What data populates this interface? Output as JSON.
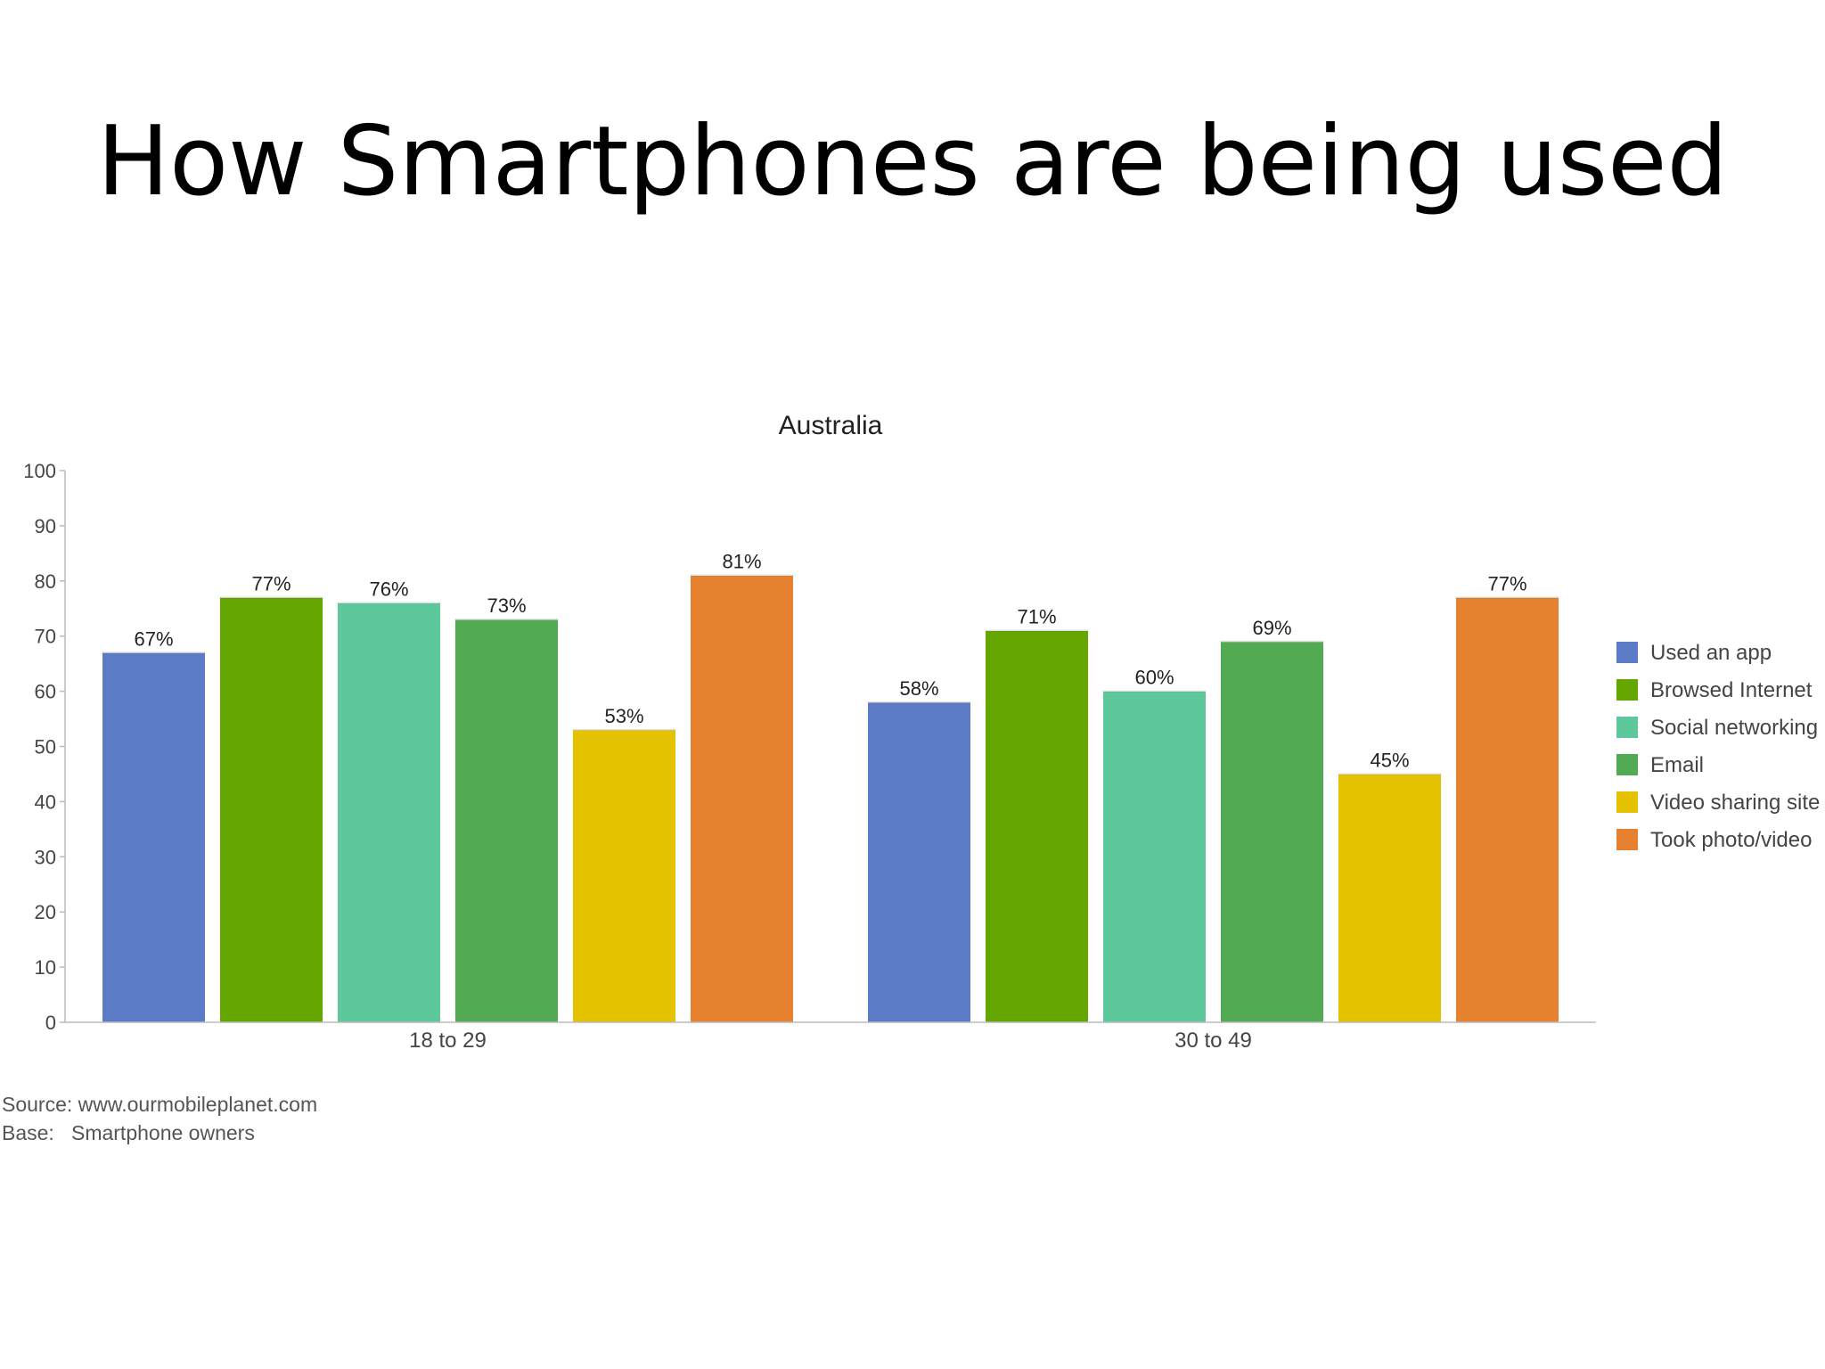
{
  "slide": {
    "title": "How Smartphones are being used"
  },
  "chart_data": {
    "type": "bar",
    "title": "Australia",
    "categories": [
      "18 to 29",
      "30 to 49"
    ],
    "series": [
      {
        "name": "Used an app",
        "color": "#5b7bc6",
        "values": [
          67,
          58
        ],
        "labels": [
          "67%",
          "58%"
        ]
      },
      {
        "name": "Browsed Internet",
        "color": "#66a600",
        "values": [
          77,
          71
        ],
        "labels": [
          "77%",
          "71%"
        ]
      },
      {
        "name": "Social networking",
        "color": "#5cc89c",
        "values": [
          76,
          60
        ],
        "labels": [
          "76%",
          "60%"
        ]
      },
      {
        "name": "Email",
        "color": "#52ab52",
        "values": [
          73,
          69
        ],
        "labels": [
          "73%",
          "69%"
        ]
      },
      {
        "name": "Video sharing site",
        "color": "#e4c200",
        "values": [
          53,
          45
        ],
        "labels": [
          "53%",
          "45%"
        ]
      },
      {
        "name": "Took photo/video",
        "color": "#e5812f",
        "values": [
          81,
          77
        ],
        "labels": [
          "81%",
          "77%"
        ]
      }
    ],
    "ylim": [
      0,
      100
    ],
    "yticks": [
      0,
      10,
      20,
      30,
      40,
      50,
      60,
      70,
      80,
      90,
      100
    ],
    "xlabel": "",
    "ylabel": "",
    "grid": false,
    "legend": "right"
  },
  "footnotes": {
    "source": "Source: www.ourmobileplanet.com",
    "base": "Base:   Smartphone owners"
  }
}
